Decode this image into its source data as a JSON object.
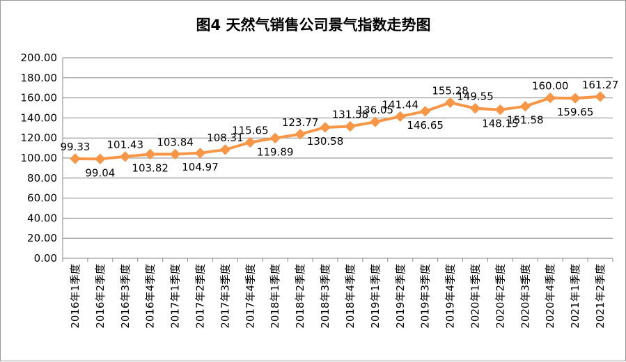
{
  "chart_data": {
    "type": "line",
    "title": "图4  天然气销售公司景气指数走势图",
    "xlabel": "",
    "ylabel": "",
    "ylim": [
      0,
      200
    ],
    "yticks": [
      "0.00",
      "20.00",
      "40.00",
      "60.00",
      "80.00",
      "100.00",
      "120.00",
      "140.00",
      "160.00",
      "180.00",
      "200.00"
    ],
    "grid": true,
    "legend": "none",
    "categories": [
      "2016年1季度",
      "2016年2季度",
      "2016年3季度",
      "2016年4季度",
      "2017年1季度",
      "2017年2季度",
      "2017年3季度",
      "2017年4季度",
      "2018年1季度",
      "2018年2季度",
      "2018年3季度",
      "2018年4季度",
      "2019年1季度",
      "2019年2季度",
      "2019年3季度",
      "2019年4季度",
      "2020年1季度",
      "2020年2季度",
      "2020年3季度",
      "2020年4季度",
      "2021年1季度",
      "2021年2季度"
    ],
    "series": [
      {
        "color": "#f79646",
        "values": [
          99.33,
          99.04,
          101.43,
          103.82,
          103.84,
          104.97,
          108.31,
          115.65,
          119.89,
          123.77,
          130.58,
          131.58,
          136.05,
          141.44,
          146.65,
          155.28,
          149.55,
          148.15,
          151.58,
          160.0,
          159.65,
          161.27
        ],
        "labels": [
          "99.33",
          "99.04",
          "101.43",
          "103.82",
          "103.84",
          "104.97",
          "108.31",
          "115.65",
          "119.89",
          "123.77",
          "130.58",
          "131.58",
          "136.05",
          "141.44",
          "146.65",
          "155.28",
          "149.55",
          "148.15",
          "151.58",
          "160.00",
          "159.65",
          "161.27"
        ],
        "label_positions": [
          "above",
          "below",
          "above",
          "below",
          "above",
          "below",
          "above",
          "above",
          "below",
          "above",
          "below",
          "above",
          "above",
          "above",
          "below",
          "above",
          "above",
          "below",
          "below",
          "above",
          "below",
          "above"
        ]
      }
    ]
  }
}
